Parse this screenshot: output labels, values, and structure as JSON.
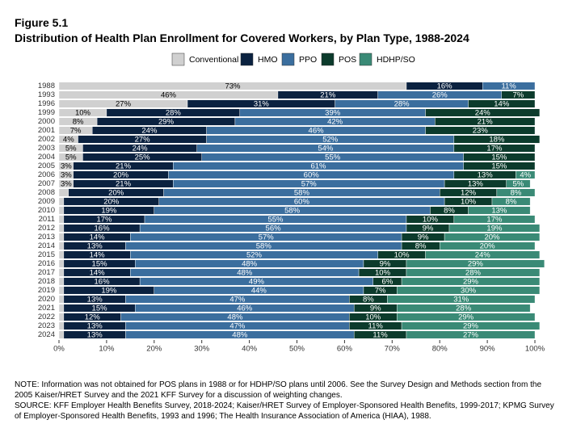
{
  "chart_data": {
    "type": "stacked-bar-horizontal",
    "figure_label": "Figure 5.1",
    "title": "Distribution of Health Plan Enrollment for Covered Workers, by Plan Type, 1988-2024",
    "categories": [
      "1988",
      "1993",
      "1996",
      "1999",
      "2000",
      "2001",
      "2002",
      "2003",
      "2004",
      "2005",
      "2006",
      "2007",
      "2008",
      "2009",
      "2010",
      "2011",
      "2012",
      "2013",
      "2014",
      "2015",
      "2016",
      "2017",
      "2018",
      "2019",
      "2020",
      "2021",
      "2022",
      "2023",
      "2024"
    ],
    "series": [
      {
        "name": "Conventional",
        "color": "#d0d0d0",
        "values": [
          73,
          46,
          27,
          10,
          8,
          7,
          4,
          5,
          5,
          3,
          3,
          3,
          2,
          1,
          1,
          1,
          1,
          1,
          1,
          1,
          1,
          1,
          1,
          1,
          1,
          1,
          1,
          1,
          1
        ],
        "value_labels": [
          "73%",
          "46%",
          "27%",
          "10%",
          "8%",
          "7%",
          "4%",
          "5%",
          "5%",
          "3%",
          "3%",
          "3%",
          null,
          null,
          null,
          null,
          null,
          null,
          null,
          null,
          null,
          null,
          null,
          null,
          null,
          null,
          null,
          null,
          null
        ]
      },
      {
        "name": "HMO",
        "color": "#0b2240",
        "values": [
          16,
          21,
          31,
          28,
          29,
          24,
          27,
          24,
          25,
          21,
          20,
          21,
          20,
          20,
          19,
          17,
          16,
          14,
          13,
          14,
          15,
          14,
          16,
          19,
          13,
          15,
          12,
          13,
          13
        ],
        "value_labels": [
          "16%",
          "21%",
          "31%",
          "28%",
          "29%",
          "24%",
          "27%",
          "24%",
          "25%",
          "21%",
          "20%",
          "21%",
          "20%",
          "20%",
          "19%",
          "17%",
          "16%",
          "14%",
          "13%",
          "14%",
          "15%",
          "14%",
          "16%",
          "19%",
          "13%",
          "15%",
          "12%",
          "13%",
          "13%"
        ]
      },
      {
        "name": "PPO",
        "color": "#3b6e9e",
        "values": [
          11,
          26,
          28,
          39,
          42,
          46,
          52,
          54,
          55,
          61,
          60,
          57,
          58,
          60,
          58,
          55,
          56,
          57,
          58,
          52,
          48,
          48,
          49,
          44,
          47,
          46,
          48,
          47,
          48
        ],
        "value_labels": [
          "11%",
          "26%",
          "28%",
          "39%",
          "42%",
          "46%",
          "52%",
          "54%",
          "55%",
          "61%",
          "60%",
          "57%",
          "58%",
          "60%",
          "58%",
          "55%",
          "56%",
          "57%",
          "58%",
          "52%",
          "48%",
          "48%",
          "49%",
          "44%",
          "47%",
          "46%",
          "48%",
          "47%",
          "48%"
        ]
      },
      {
        "name": "POS",
        "color": "#0c3b2c",
        "values": [
          null,
          7,
          14,
          24,
          21,
          23,
          18,
          17,
          15,
          15,
          13,
          13,
          12,
          10,
          8,
          10,
          9,
          9,
          8,
          10,
          9,
          10,
          6,
          7,
          8,
          9,
          10,
          11,
          11
        ],
        "value_labels": [
          null,
          "7%",
          "14%",
          "24%",
          "21%",
          "23%",
          "18%",
          "17%",
          "15%",
          "15%",
          "13%",
          "13%",
          "12%",
          "10%",
          "8%",
          "10%",
          "9%",
          "9%",
          "8%",
          "10%",
          "9%",
          "10%",
          "6%",
          "7%",
          "8%",
          "9%",
          "10%",
          "11%",
          "11%"
        ]
      },
      {
        "name": "HDHP/SO",
        "color": "#3a8a76",
        "values": [
          null,
          null,
          null,
          null,
          null,
          null,
          null,
          null,
          null,
          null,
          4,
          5,
          8,
          8,
          13,
          17,
          19,
          20,
          20,
          24,
          29,
          28,
          29,
          30,
          31,
          28,
          29,
          29,
          27
        ],
        "value_labels": [
          null,
          null,
          null,
          null,
          null,
          null,
          null,
          null,
          null,
          null,
          "4%",
          "5%",
          "8%",
          "8%",
          "13%",
          "17%",
          "19%",
          "20%",
          "20%",
          "24%",
          "29%",
          "28%",
          "29%",
          "30%",
          "31%",
          "28%",
          "29%",
          "29%",
          "27%"
        ]
      }
    ],
    "xlim": [
      0,
      100
    ],
    "xticks": [
      {
        "value": 0,
        "label": "0%"
      },
      {
        "value": 10,
        "label": "10%"
      },
      {
        "value": 20,
        "label": "20%"
      },
      {
        "value": 30,
        "label": "30%"
      },
      {
        "value": 40,
        "label": "40%"
      },
      {
        "value": 50,
        "label": "50%"
      },
      {
        "value": 60,
        "label": "60%"
      },
      {
        "value": 70,
        "label": "70%"
      },
      {
        "value": 80,
        "label": "80%"
      },
      {
        "value": 90,
        "label": "90%"
      },
      {
        "value": 100,
        "label": "100%"
      }
    ],
    "legend": "top",
    "note": "NOTE: Information was not obtained for POS plans in 1988 or for HDHP/SO plans until 2006. See the Survey Design and Methods section from the 2005 Kaiser/HRET Survey and the 2021 KFF Survey for a discussion of weighting changes.",
    "source": "SOURCE: KFF Employer Health Benefits Survey, 2018-2024; Kaiser/HRET Survey of Employer-Sponsored Health Benefits, 1999-2017; KPMG Survey of Employer-Sponsored Health Benefits, 1993 and 1996; The Health Insurance Association of America (HIAA), 1988."
  }
}
